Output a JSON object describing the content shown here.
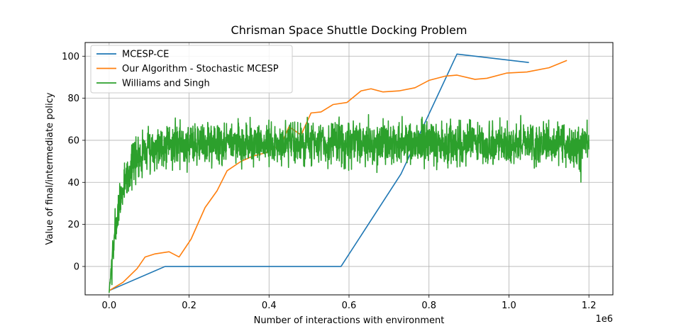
{
  "chart_data": {
    "type": "line",
    "title": "Chrisman Space Shuttle Docking Problem",
    "xlabel": "Number of interactions with environment",
    "ylabel": "Value of final/intermediate policy",
    "x_offset_label": "1e6",
    "xlim": [
      -0.06,
      1.26
    ],
    "ylim": [
      -13.5,
      106.5
    ],
    "xticks": [
      0.0,
      0.2,
      0.4,
      0.6,
      0.8,
      1.0,
      1.2
    ],
    "xtick_labels": [
      "0.0",
      "0.2",
      "0.4",
      "0.6",
      "0.8",
      "1.0",
      "1.2"
    ],
    "yticks": [
      0,
      20,
      40,
      60,
      80,
      100
    ],
    "ytick_labels": [
      "0",
      "20",
      "40",
      "60",
      "80",
      "100"
    ],
    "grid": true,
    "legend_position": "top-left",
    "series": [
      {
        "name": "MCESP-CE",
        "color": "#1f77b4",
        "x": [
          0.0,
          0.14,
          0.58,
          0.73,
          0.87,
          1.05
        ],
        "y": [
          -11.5,
          0,
          0,
          44,
          101,
          97
        ]
      },
      {
        "name": "Our Algorithm - Stochastic MCESP",
        "color": "#ff7f0e",
        "x": [
          0.0,
          0.035,
          0.07,
          0.09,
          0.115,
          0.15,
          0.175,
          0.205,
          0.24,
          0.27,
          0.295,
          0.33,
          0.36,
          0.39,
          0.43,
          0.45,
          0.48,
          0.505,
          0.53,
          0.56,
          0.595,
          0.63,
          0.655,
          0.685,
          0.725,
          0.765,
          0.8,
          0.84,
          0.87,
          0.915,
          0.945,
          0.995,
          1.045,
          1.1,
          1.145
        ],
        "y": [
          -11.5,
          -7.5,
          -1,
          4.5,
          6,
          7,
          4.5,
          13,
          28,
          36,
          45.5,
          50,
          52.5,
          54,
          58,
          66.5,
          62.5,
          73,
          73.5,
          77,
          78,
          83.5,
          84.5,
          83,
          83.5,
          85,
          88.5,
          90.5,
          91,
          89,
          89.5,
          92,
          92.5,
          94.5,
          98
        ]
      },
      {
        "name": "Williams and Singh",
        "color": "#2ca02c",
        "generated": {
          "x_start": 0.0,
          "x_end": 1.2,
          "points": 2400,
          "start_value": -12.5,
          "rise_time": 0.035,
          "plateau_mean": 58.5,
          "noise_amplitude": 5,
          "max_value": 75,
          "min_value": -12.5,
          "seed": 7
        }
      }
    ]
  }
}
